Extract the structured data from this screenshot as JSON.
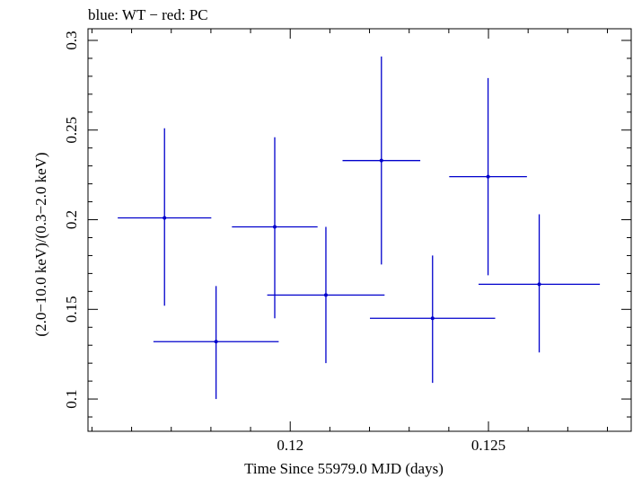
{
  "chart_data": {
    "type": "scatter",
    "title": "blue: WT − red: PC",
    "xlabel": "Time Since 55979.0 MJD (days)",
    "ylabel": "(2.0−10.0 keV)/(0.3−2.0 keV)",
    "xlim": [
      0.1149,
      0.1286
    ],
    "ylim": [
      0.082,
      0.3065
    ],
    "x_ticks": [
      {
        "value": 0.12,
        "label": "0.12"
      },
      {
        "value": 0.125,
        "label": "0.125"
      }
    ],
    "y_ticks": [
      {
        "value": 0.1,
        "label": "0.1"
      },
      {
        "value": 0.15,
        "label": "0.15"
      },
      {
        "value": 0.2,
        "label": "0.2"
      },
      {
        "value": 0.25,
        "label": "0.25"
      },
      {
        "value": 0.3,
        "label": "0.3"
      }
    ],
    "grid": false,
    "series": [
      {
        "color": "#0000cc",
        "points": [
          {
            "x": 0.11683,
            "y": 0.201,
            "xerr": 0.00118,
            "ylo": 0.152,
            "yhi": 0.251
          },
          {
            "x": 0.11813,
            "y": 0.132,
            "xerr": 0.00158,
            "ylo": 0.1,
            "yhi": 0.163
          },
          {
            "x": 0.11961,
            "y": 0.196,
            "xerr": 0.00108,
            "ylo": 0.145,
            "yhi": 0.246
          },
          {
            "x": 0.1209,
            "y": 0.158,
            "xerr": 0.00148,
            "ylo": 0.12,
            "yhi": 0.196
          },
          {
            "x": 0.1223,
            "y": 0.233,
            "xerr": 0.00098,
            "ylo": 0.175,
            "yhi": 0.291
          },
          {
            "x": 0.12359,
            "y": 0.145,
            "xerr": 0.00158,
            "ylo": 0.109,
            "yhi": 0.18
          },
          {
            "x": 0.12499,
            "y": 0.224,
            "xerr": 0.00098,
            "ylo": 0.169,
            "yhi": 0.279
          },
          {
            "x": 0.12628,
            "y": 0.164,
            "xerr": 0.00153,
            "ylo": 0.126,
            "yhi": 0.203
          }
        ]
      }
    ]
  }
}
